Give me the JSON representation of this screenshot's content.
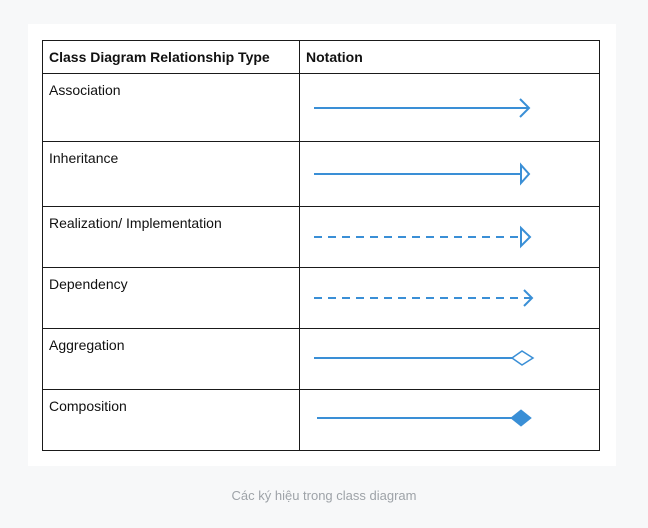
{
  "table": {
    "header": {
      "type_label": "Class Diagram Relationship Type",
      "notation_label": "Notation"
    },
    "rows": [
      {
        "type": "Association",
        "notation": "association-arrow-icon"
      },
      {
        "type": "Inheritance",
        "notation": "inheritance-arrow-icon"
      },
      {
        "type": "Realization/ Implementation",
        "notation": "realization-arrow-icon"
      },
      {
        "type": "Dependency",
        "notation": "dependency-arrow-icon"
      },
      {
        "type": "Aggregation",
        "notation": "aggregation-diamond-icon"
      },
      {
        "type": "Composition",
        "notation": "composition-diamond-icon"
      }
    ]
  },
  "caption": "Các ký hiệu trong class diagram",
  "colors": {
    "line": "#3a8fd6",
    "border": "#1a1a1a",
    "caption": "#9ea3a8",
    "card": "#ffffff",
    "page": "#f7f8f9"
  }
}
